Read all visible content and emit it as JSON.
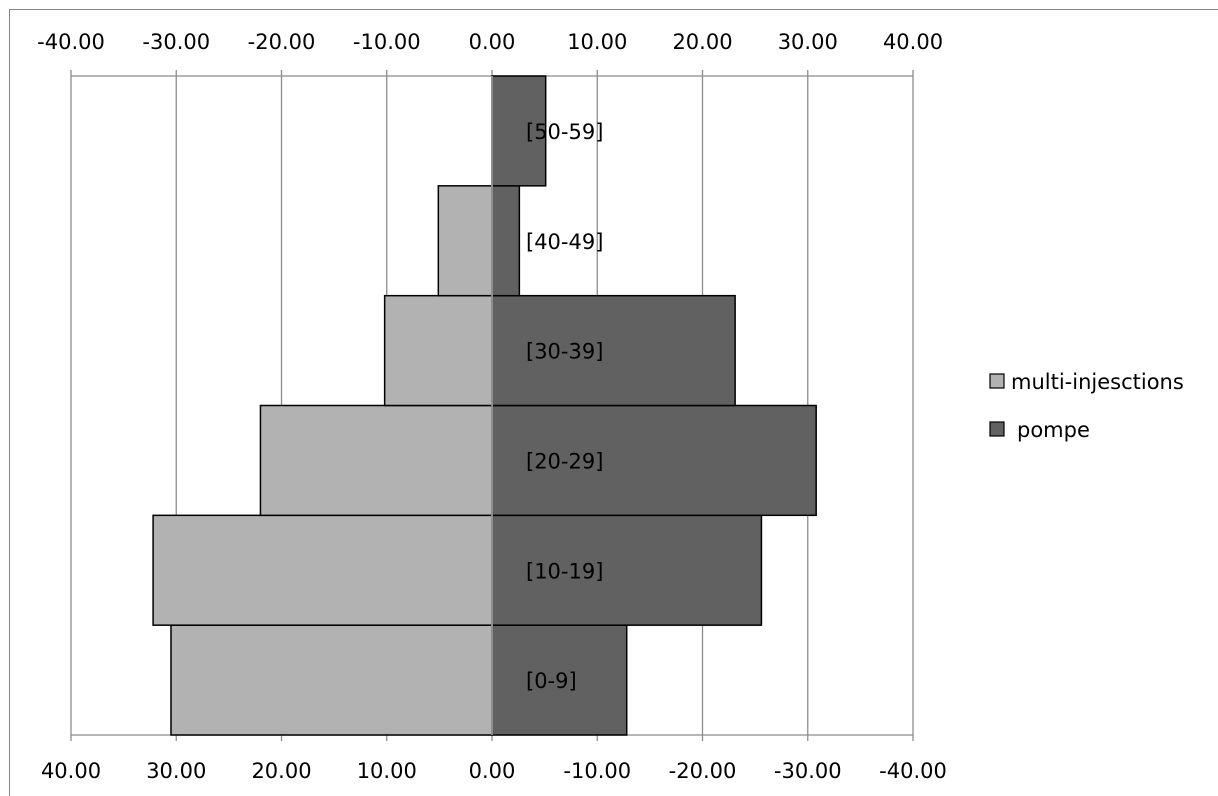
{
  "chart_data": {
    "type": "bar",
    "orientation": "horizontal",
    "layout": "population-pyramid",
    "categories": [
      "[0-9]",
      "[10-19]",
      "[20-29]",
      "[30-39]",
      "[40-49]",
      "[50-59]"
    ],
    "series": [
      {
        "name": "multi-injesctions",
        "values": [
          -30.5,
          -32.2,
          -22.0,
          -10.2,
          -5.1,
          0.0
        ],
        "color": "#b2b2b2"
      },
      {
        "name": "pompe",
        "values": [
          12.8,
          25.6,
          30.8,
          23.1,
          2.6,
          5.1
        ],
        "color": "#616161"
      }
    ],
    "xlim": [
      -40,
      40
    ],
    "top_ticks": [
      "-40.00",
      "-30.00",
      "-20.00",
      "-10.00",
      "0.00",
      "10.00",
      "20.00",
      "30.00",
      "40.00"
    ],
    "bottom_ticks": [
      "40.00",
      "30.00",
      "20.00",
      "10.00",
      "0.00",
      "-10.00",
      "-20.00",
      "-30.00",
      "-40.00"
    ],
    "grid": true,
    "legend_position": "right",
    "title": "",
    "xlabel": "",
    "ylabel": ""
  }
}
